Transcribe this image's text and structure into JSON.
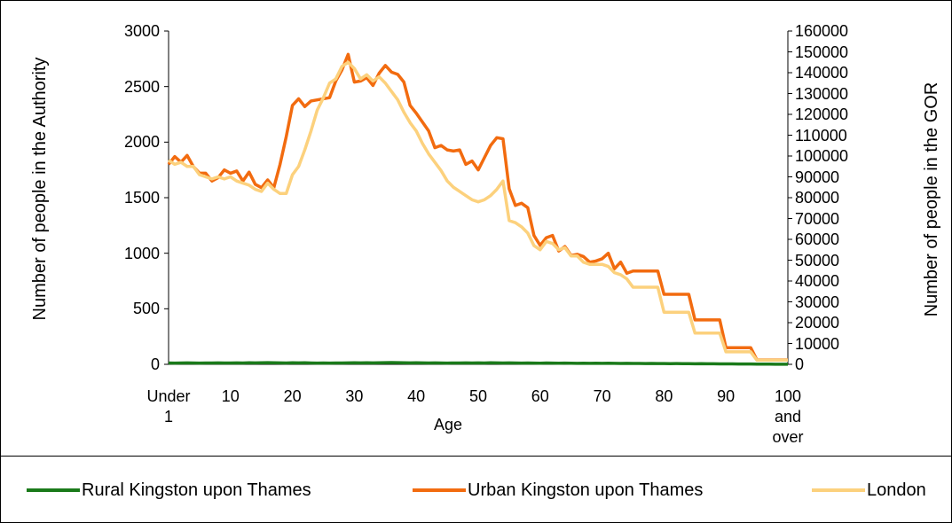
{
  "chart_data": {
    "type": "line",
    "xlabel": "Age",
    "ylabel": "Number of people in the Authority",
    "y2label": "Number of people in the GOR",
    "categories": [
      "Under 1",
      null,
      null,
      null,
      null,
      null,
      null,
      null,
      null,
      null,
      "10",
      null,
      null,
      null,
      null,
      null,
      null,
      null,
      null,
      null,
      "20",
      null,
      null,
      null,
      null,
      null,
      null,
      null,
      null,
      null,
      "30",
      null,
      null,
      null,
      null,
      null,
      null,
      null,
      null,
      null,
      "40",
      null,
      null,
      null,
      null,
      null,
      null,
      null,
      null,
      null,
      "50",
      null,
      null,
      null,
      null,
      null,
      null,
      null,
      null,
      null,
      "60",
      null,
      null,
      null,
      null,
      null,
      null,
      null,
      null,
      null,
      "70",
      null,
      null,
      null,
      null,
      null,
      null,
      null,
      null,
      null,
      "80",
      null,
      null,
      null,
      null,
      null,
      null,
      null,
      null,
      null,
      "90",
      null,
      null,
      null,
      null,
      null,
      null,
      null,
      null,
      null,
      "100 and over"
    ],
    "ylim": [
      0,
      3000
    ],
    "yticks": [
      0,
      500,
      1000,
      1500,
      2000,
      2500,
      3000
    ],
    "y2lim": [
      0,
      160000
    ],
    "y2ticks": [
      0,
      10000,
      20000,
      30000,
      40000,
      50000,
      60000,
      70000,
      80000,
      90000,
      100000,
      110000,
      120000,
      130000,
      140000,
      150000,
      160000
    ],
    "legend": "bottom",
    "series": [
      {
        "name": "Rural Kingston upon Thames",
        "color": "#1a7a1a",
        "values": [
          12,
          11,
          12,
          13,
          12,
          11,
          12,
          12,
          13,
          12,
          12,
          13,
          12,
          14,
          13,
          14,
          15,
          14,
          13,
          12,
          14,
          13,
          14,
          12,
          11,
          12,
          11,
          12,
          12,
          13,
          14,
          13,
          14,
          13,
          14,
          15,
          16,
          15,
          14,
          13,
          14,
          13,
          12,
          13,
          12,
          11,
          12,
          12,
          13,
          12,
          13,
          12,
          14,
          13,
          12,
          13,
          12,
          11,
          12,
          11,
          10,
          12,
          11,
          10,
          11,
          10,
          9,
          10,
          9,
          10,
          9,
          10,
          9,
          8,
          9,
          8,
          8,
          7,
          8,
          7,
          7,
          6,
          7,
          6,
          6,
          5,
          6,
          5,
          5,
          4,
          4,
          4,
          3,
          3,
          3,
          2,
          2,
          2,
          1,
          1,
          1
        ]
      },
      {
        "name": "Urban Kingston upon Thames",
        "color": "#f26b0f",
        "values": [
          1800,
          1870,
          1820,
          1880,
          1780,
          1720,
          1720,
          1650,
          1680,
          1750,
          1720,
          1740,
          1650,
          1730,
          1620,
          1590,
          1660,
          1590,
          1800,
          2050,
          2330,
          2390,
          2320,
          2370,
          2380,
          2390,
          2400,
          2550,
          2650,
          2790,
          2540,
          2550,
          2580,
          2510,
          2620,
          2690,
          2630,
          2610,
          2540,
          2330,
          2260,
          2180,
          2100,
          1950,
          1970,
          1930,
          1920,
          1930,
          1800,
          1830,
          1750,
          1860,
          1970,
          2040,
          2030,
          1580,
          1430,
          1450,
          1410,
          1160,
          1070,
          1140,
          1160,
          1020,
          1060,
          980,
          990,
          970,
          920,
          930,
          950,
          1000,
          860,
          920,
          820,
          840,
          840,
          840,
          840,
          840,
          630,
          630,
          630,
          630,
          630,
          400,
          400,
          400,
          400,
          400,
          150,
          150,
          150,
          150,
          150,
          40,
          40,
          40,
          40,
          40,
          40
        ]
      },
      {
        "name": "London",
        "color": "#fcd17d",
        "axis": "y2",
        "values": [
          98000,
          96000,
          97000,
          95000,
          95000,
          91000,
          90000,
          89000,
          90000,
          89000,
          90000,
          88000,
          87000,
          86000,
          84000,
          83000,
          87000,
          84000,
          82000,
          82000,
          91000,
          95000,
          103000,
          112000,
          122000,
          128000,
          135000,
          137000,
          143000,
          145000,
          142000,
          137000,
          139000,
          136000,
          138000,
          135000,
          131000,
          127000,
          121000,
          116000,
          112000,
          106000,
          101000,
          97000,
          93000,
          88000,
          85000,
          83000,
          81000,
          79000,
          78000,
          79000,
          81000,
          84000,
          88000,
          69000,
          68000,
          66000,
          63000,
          57000,
          55000,
          59000,
          58000,
          55000,
          56000,
          52000,
          52000,
          49000,
          48000,
          48000,
          48000,
          47000,
          44000,
          43000,
          41000,
          37000,
          37000,
          37000,
          37000,
          37000,
          25000,
          25000,
          25000,
          25000,
          25000,
          15000,
          15000,
          15000,
          15000,
          15000,
          6000,
          6000,
          6000,
          6000,
          6000,
          2000,
          2000,
          2000,
          2000,
          2000,
          2000
        ]
      }
    ]
  }
}
